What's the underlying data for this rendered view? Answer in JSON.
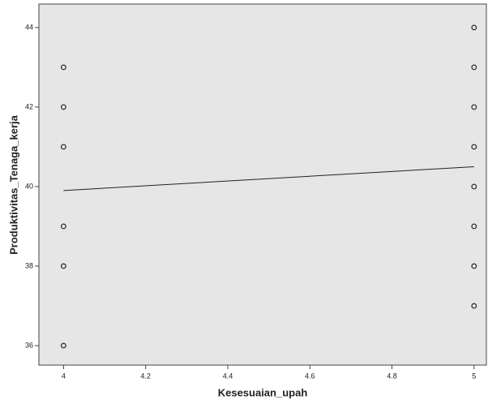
{
  "chart_data": {
    "type": "scatter",
    "x_label": "Kesesuaian_upah",
    "y_label": "Produktivitas_Tenaga_kerja",
    "points": {
      "color": "#333333",
      "x": [
        4,
        4,
        4,
        4,
        4,
        4,
        5,
        5,
        5,
        5,
        5,
        5,
        5,
        5
      ],
      "values": [
        43,
        42,
        41,
        39,
        38,
        36,
        44,
        43,
        42,
        41,
        40,
        39,
        38,
        37
      ]
    },
    "fit_line": {
      "color": "#222222",
      "x": [
        4,
        5
      ],
      "values": [
        39.9,
        40.5
      ]
    },
    "xlim": [
      3.94,
      5.03
    ],
    "ylim": [
      35.51,
      44.59
    ],
    "xticks": [
      4,
      4.2,
      4.4,
      4.6,
      4.8,
      5
    ],
    "yticks": [
      36,
      38,
      40,
      42,
      44
    ]
  }
}
